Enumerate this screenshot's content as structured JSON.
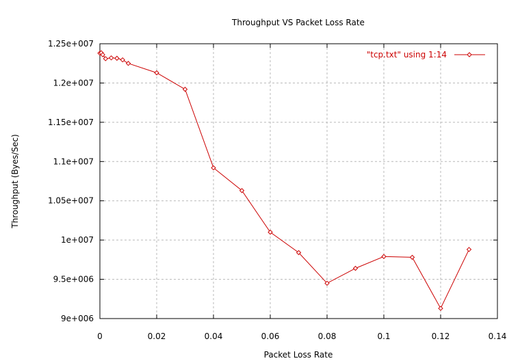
{
  "chart_data": {
    "type": "line",
    "title": "Throughput VS Packet Loss Rate",
    "xlabel": "Packet Loss Rate",
    "ylabel": "Throughput (Byes/Sec)",
    "xlim": [
      0,
      0.14
    ],
    "ylim": [
      9000000,
      12500000
    ],
    "x_ticks": [
      0,
      0.02,
      0.04,
      0.06,
      0.08,
      0.1,
      0.12,
      0.14
    ],
    "x_tick_labels": [
      "0",
      "0.02",
      "0.04",
      "0.06",
      "0.08",
      "0.1",
      "0.12",
      "0.14"
    ],
    "y_ticks": [
      9000000,
      9500000,
      10000000,
      10500000,
      11000000,
      11500000,
      12000000,
      12500000
    ],
    "y_tick_labels": [
      "9e+006",
      "9.5e+006",
      "1e+007",
      "1.05e+007",
      "1.1e+007",
      "1.15e+007",
      "1.2e+007",
      "1.25e+007"
    ],
    "grid": true,
    "legend_position": "top-right",
    "series": [
      {
        "name": "\"tcp.txt\" using 1:14",
        "color": "#cc0000",
        "marker": "diamond",
        "x": [
          0,
          0.0005,
          0.001,
          0.002,
          0.004,
          0.006,
          0.008,
          0.01,
          0.02,
          0.03,
          0.04,
          0.05,
          0.06,
          0.07,
          0.08,
          0.09,
          0.1,
          0.11,
          0.12,
          0.13
        ],
        "y": [
          12380000,
          12385000,
          12360000,
          12310000,
          12320000,
          12315000,
          12295000,
          12250000,
          12130000,
          11920000,
          10920000,
          10630000,
          10100000,
          9840000,
          9450000,
          9640000,
          9790000,
          9780000,
          9130000,
          9880000
        ]
      }
    ]
  }
}
